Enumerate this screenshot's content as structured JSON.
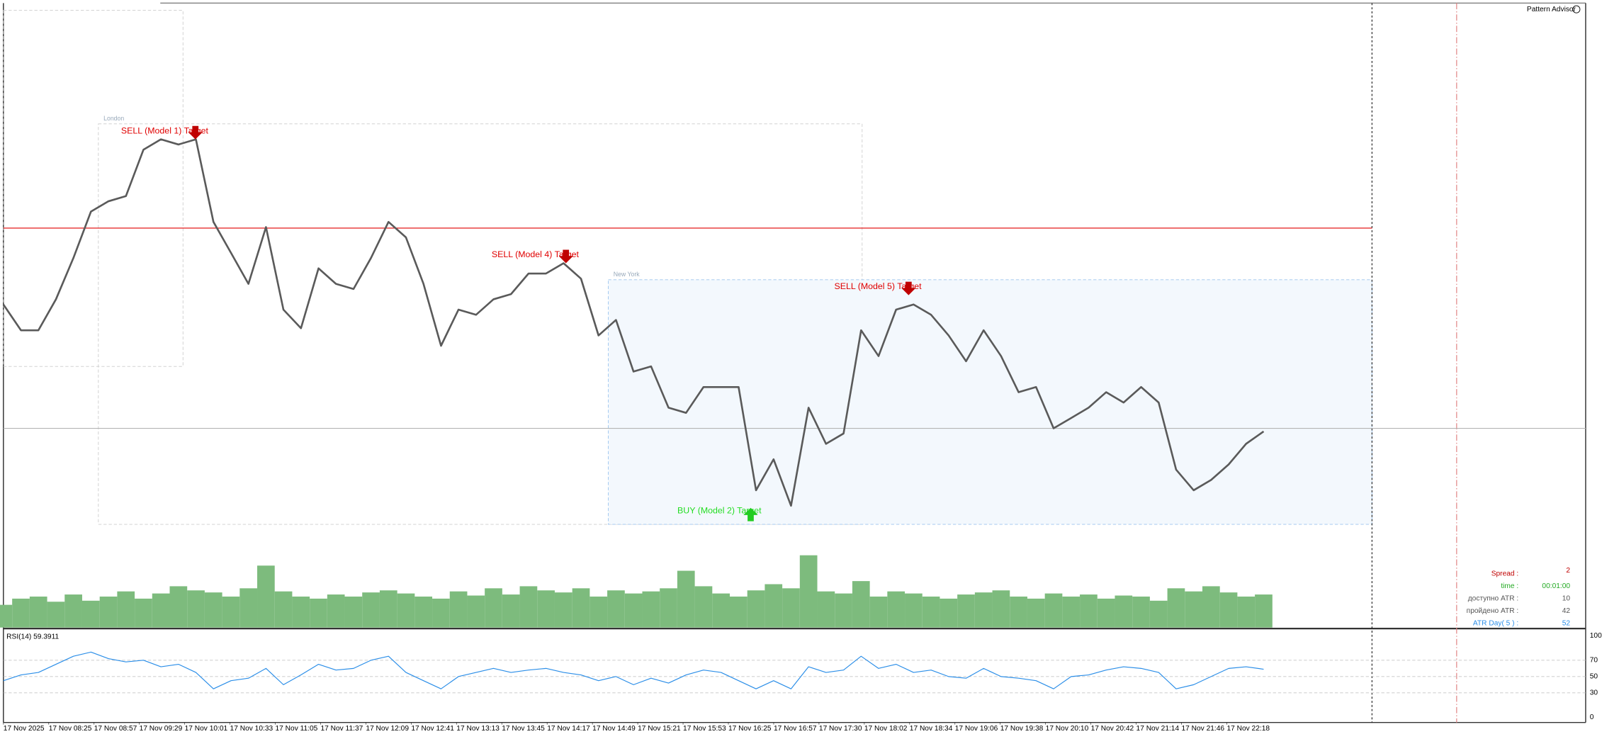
{
  "header": {
    "advisor": "Pattern Advisor"
  },
  "sessions": {
    "london": "London",
    "new_york": "New York"
  },
  "annotations": {
    "sell_1": "SELL (Model 1) Target",
    "sell_4": "SELL (Model 4) Target",
    "sell_5": "SELL (Model 5) Target",
    "buy_2": "BUY (Model 2) Target"
  },
  "info_panel": {
    "rows": [
      {
        "label": "Spread :",
        "value": "2"
      },
      {
        "label": "time :",
        "value": "00:01:00"
      },
      {
        "label": "доступно ATR :",
        "value": "10"
      },
      {
        "label": "пройдено ATR :",
        "value": "42"
      },
      {
        "label": "ATR Day( 5 ) :",
        "value": "52"
      }
    ]
  },
  "time_axis": {
    "labels": [
      "17 Nov 2025",
      "17 Nov 08:25",
      "17 Nov 08:57",
      "17 Nov 09:29",
      "17 Nov 10:01",
      "17 Nov 10:33",
      "17 Nov 11:05",
      "17 Nov 11:37",
      "17 Nov 12:09",
      "17 Nov 12:41",
      "17 Nov 13:13",
      "17 Nov 13:45",
      "17 Nov 14:17",
      "17 Nov 14:49",
      "17 Nov 15:21",
      "17 Nov 15:53",
      "17 Nov 16:25",
      "17 Nov 16:57",
      "17 Nov 17:30",
      "17 Nov 18:02",
      "17 Nov 18:34",
      "17 Nov 19:06",
      "17 Nov 19:38",
      "17 Nov 20:10",
      "17 Nov 20:42",
      "17 Nov 21:14",
      "17 Nov 21:46",
      "17 Nov 22:18"
    ]
  },
  "chart_data": [
    {
      "type": "line",
      "color": "#5a5a5a",
      "ylim": [
        0,
        605
      ],
      "values": [
        313,
        288,
        288,
        318,
        358,
        403,
        413,
        418,
        463,
        473,
        468,
        473,
        393,
        363,
        333,
        388,
        308,
        290,
        348,
        333,
        328,
        358,
        393,
        378,
        333,
        273,
        308,
        303,
        318,
        323,
        343,
        343,
        353,
        338,
        283,
        298,
        248,
        253,
        213,
        208,
        233,
        233,
        233,
        133,
        163,
        118,
        213,
        178,
        188,
        288,
        263,
        308,
        313,
        303,
        283,
        258,
        288,
        263,
        228,
        233,
        193,
        203,
        213,
        228,
        218,
        233,
        218,
        153,
        133,
        143,
        158,
        178,
        190
      ],
      "levels": [
        {
          "value": 387,
          "color": "#e00000"
        },
        {
          "value": 193,
          "color": "#b4b4b4"
        }
      ]
    },
    {
      "type": "bar",
      "color": "#7dbb7d",
      "ylim": [
        0,
        605
      ],
      "values": [
        22,
        28,
        30,
        25,
        32,
        26,
        30,
        35,
        28,
        33,
        40,
        36,
        34,
        30,
        38,
        60,
        35,
        30,
        28,
        32,
        30,
        34,
        36,
        33,
        30,
        28,
        35,
        31,
        38,
        32,
        40,
        36,
        34,
        38,
        30,
        36,
        33,
        35,
        38,
        55,
        40,
        33,
        30,
        36,
        42,
        38,
        70,
        35,
        33,
        45,
        30,
        35,
        33,
        30,
        28,
        32,
        34,
        36,
        30,
        28,
        33,
        30,
        32,
        28,
        31,
        30,
        26,
        38,
        35,
        40,
        34,
        30,
        32
      ]
    },
    {
      "type": "line",
      "title": "RSI(14) 59.3911",
      "color": "#2b8ee8",
      "ylim": [
        0,
        100
      ],
      "yticks": [
        0,
        30,
        50,
        70,
        100
      ],
      "values": [
        45,
        52,
        55,
        65,
        75,
        80,
        72,
        68,
        70,
        62,
        65,
        55,
        35,
        45,
        48,
        60,
        40,
        52,
        65,
        58,
        60,
        70,
        75,
        55,
        45,
        35,
        50,
        55,
        60,
        55,
        58,
        60,
        55,
        52,
        45,
        50,
        40,
        48,
        42,
        52,
        58,
        55,
        45,
        35,
        45,
        35,
        62,
        55,
        58,
        75,
        60,
        65,
        55,
        58,
        50,
        48,
        60,
        50,
        48,
        45,
        35,
        50,
        52,
        58,
        62,
        60,
        55,
        35,
        40,
        50,
        60,
        62,
        59
      ]
    }
  ]
}
